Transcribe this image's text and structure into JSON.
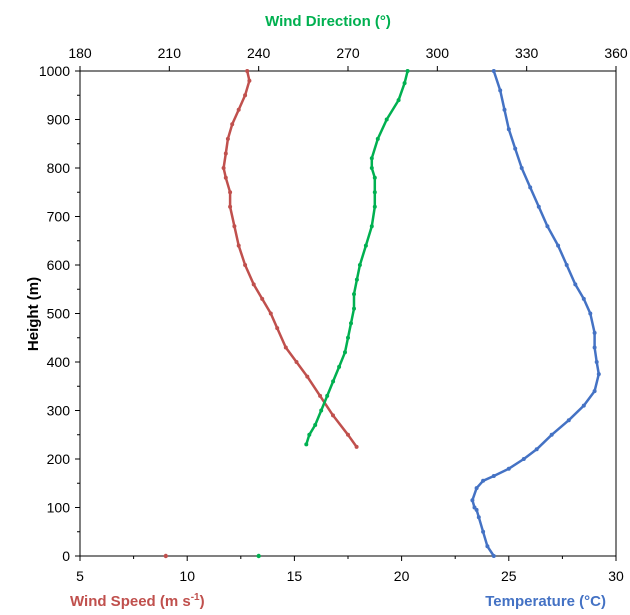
{
  "colors": {
    "wind_speed": "#c0504d",
    "wind_direction": "#00b050",
    "temperature": "#4472c4",
    "axis": "#000000"
  },
  "chart_data": {
    "type": "line",
    "axes": {
      "left": {
        "label": "Height (m)",
        "ylim": [
          0,
          1000
        ],
        "ticks": [
          0,
          100,
          200,
          300,
          400,
          500,
          600,
          700,
          800,
          900,
          1000
        ]
      },
      "bottom": {
        "label": "Wind Speed (m s",
        "label_sup": "-1",
        "label_end": ")",
        "xlim": [
          5,
          30
        ],
        "ticks": [
          5,
          10,
          15,
          20,
          25,
          30
        ]
      },
      "top": {
        "label": "Wind Direction  (°)",
        "xlim": [
          180,
          360
        ],
        "ticks": [
          180,
          210,
          240,
          270,
          300,
          330,
          360
        ]
      },
      "bottom_note": "Temperature (°C)"
    },
    "grid": false,
    "series": [
      {
        "name": "Wind Speed (m s-1)",
        "axis": "bottom",
        "color": "#c0504d",
        "x": [
          17.9,
          17.5,
          16.8,
          16.2,
          15.6,
          15.1,
          14.6,
          14.2,
          13.9,
          13.5,
          13.1,
          12.7,
          12.4,
          12.2,
          12.0,
          12.0,
          11.8,
          11.7,
          11.8,
          11.9,
          12.1,
          12.4,
          12.7,
          12.9,
          12.8
        ],
        "y": [
          225,
          250,
          290,
          330,
          370,
          400,
          430,
          470,
          500,
          530,
          560,
          600,
          640,
          680,
          720,
          750,
          780,
          800,
          830,
          860,
          890,
          920,
          950,
          980,
          1000
        ]
      },
      {
        "name": "Wind Direction (°)",
        "axis": "top",
        "color": "#00b050",
        "x": [
          256,
          257,
          259,
          261,
          263,
          265,
          267,
          269,
          270,
          271,
          272,
          272,
          273,
          274,
          276,
          278,
          279,
          279,
          279,
          278,
          278,
          280,
          283,
          287,
          289,
          290
        ],
        "y": [
          230,
          250,
          270,
          300,
          330,
          360,
          390,
          420,
          450,
          480,
          510,
          540,
          570,
          600,
          640,
          680,
          720,
          750,
          780,
          800,
          820,
          860,
          900,
          940,
          975,
          1000
        ]
      },
      {
        "name": "Temperature (°C)",
        "axis": "bottom",
        "color": "#4472c4",
        "x": [
          24.3,
          24.0,
          23.8,
          23.6,
          23.5,
          23.4,
          23.3,
          23.5,
          23.8,
          24.3,
          25.0,
          25.7,
          26.3,
          27.0,
          27.8,
          28.5,
          29.0,
          29.2,
          29.1,
          29.0,
          29.0,
          28.8,
          28.5,
          28.1,
          27.7,
          27.3,
          26.8,
          26.4,
          26.0,
          25.6,
          25.3,
          25.0,
          24.8,
          24.6,
          24.3
        ],
        "y": [
          0,
          20,
          50,
          80,
          95,
          100,
          115,
          140,
          155,
          165,
          180,
          200,
          220,
          250,
          280,
          310,
          340,
          375,
          400,
          430,
          460,
          500,
          530,
          560,
          600,
          640,
          680,
          720,
          760,
          800,
          840,
          880,
          920,
          960,
          1000
        ]
      }
    ],
    "annotations": [
      {
        "axis": "bottom",
        "x": 9.0,
        "y": 0,
        "color": "#c0504d"
      },
      {
        "axis": "top",
        "x": 240,
        "y": 0,
        "color": "#00b050"
      }
    ]
  }
}
